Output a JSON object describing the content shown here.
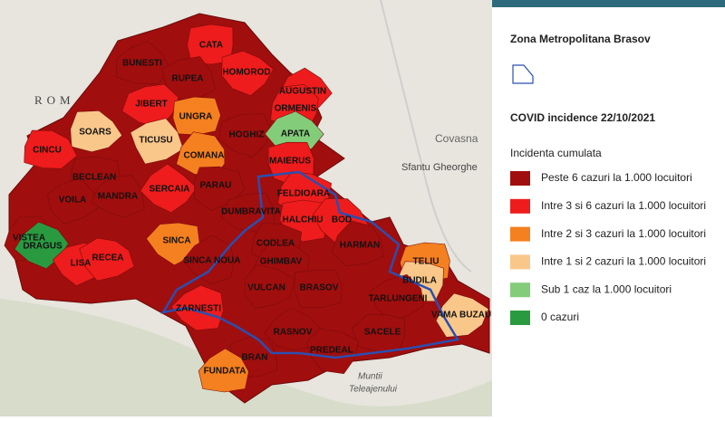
{
  "map": {
    "background_labels": [
      "ROM",
      "Covasna",
      "Sfantu Gheorghe",
      "Muntii",
      "Teleajenului"
    ],
    "regions": [
      {
        "label": "CATA",
        "color": "#ee1c1c"
      },
      {
        "label": "BUNESTI",
        "color": "#a10e0e"
      },
      {
        "label": "RUPEA",
        "color": "#a10e0e"
      },
      {
        "label": "HOMOROD",
        "color": "#ee1c1c"
      },
      {
        "label": "AUGUSTIN",
        "color": "#ee1c1c"
      },
      {
        "label": "ORMENIS",
        "color": "#ee1c1c"
      },
      {
        "label": "JIBERT",
        "color": "#ee1c1c"
      },
      {
        "label": "UNGRA",
        "color": "#f5801f"
      },
      {
        "label": "SOARS",
        "color": "#fac78a"
      },
      {
        "label": "TICUSU",
        "color": "#fac78a"
      },
      {
        "label": "HOGHIZ",
        "color": "#a10e0e"
      },
      {
        "label": "APATA",
        "color": "#82cc7a"
      },
      {
        "label": "CINCU",
        "color": "#ee1c1c"
      },
      {
        "label": "COMANA",
        "color": "#f5801f"
      },
      {
        "label": "MAIERUS",
        "color": "#ee1c1c"
      },
      {
        "label": "BECLEAN",
        "color": "#a10e0e"
      },
      {
        "label": "VOILA",
        "color": "#a10e0e"
      },
      {
        "label": "MANDRA",
        "color": "#a10e0e"
      },
      {
        "label": "SERCAIA",
        "color": "#ee1c1c"
      },
      {
        "label": "PARAU",
        "color": "#a10e0e"
      },
      {
        "label": "FELDIOARA",
        "color": "#ee1c1c"
      },
      {
        "label": "DUMBRAVITA",
        "color": "#a10e0e"
      },
      {
        "label": "HALCHIU",
        "color": "#ee1c1c"
      },
      {
        "label": "BOD",
        "color": "#ee1c1c"
      },
      {
        "label": "VISTEA",
        "color": "#a10e0e"
      },
      {
        "label": "DRAGUS",
        "color": "#2a9a41"
      },
      {
        "label": "SINCA",
        "color": "#f5801f"
      },
      {
        "label": "CODLEA",
        "color": "#a10e0e"
      },
      {
        "label": "HARMAN",
        "color": "#a10e0e"
      },
      {
        "label": "TELIU",
        "color": "#f5801f"
      },
      {
        "label": "LISA",
        "color": "#ee1c1c"
      },
      {
        "label": "RECEA",
        "color": "#ee1c1c"
      },
      {
        "label": "GHIMBAV",
        "color": "#a10e0e"
      },
      {
        "label": "SINCA NOUA",
        "color": "#a10e0e"
      },
      {
        "label": "BUDILA",
        "color": "#fac78a"
      },
      {
        "label": "VULCAN",
        "color": "#a10e0e"
      },
      {
        "label": "BRASOV",
        "color": "#a10e0e"
      },
      {
        "label": "ZARNESTI",
        "color": "#ee1c1c"
      },
      {
        "label": "TARLUNGENI",
        "color": "#a10e0e"
      },
      {
        "label": "VAMA BUZAU",
        "color": "#fac78a"
      },
      {
        "label": "RASNOV",
        "color": "#a10e0e"
      },
      {
        "label": "SACELE",
        "color": "#a10e0e"
      },
      {
        "label": "PREDEAL",
        "color": "#a10e0e"
      },
      {
        "label": "BRAN",
        "color": "#a10e0e"
      },
      {
        "label": "FUNDATA",
        "color": "#f5801f"
      }
    ]
  },
  "legend": {
    "layer_title": "Zona Metropolitana Brasov",
    "title": "COVID incidence 22/10/2021",
    "subtitle": "Incidenta cumulata",
    "items": [
      {
        "label": "Peste 6 cazuri la 1.000 locuitori",
        "color": "#a10e0e"
      },
      {
        "label": "Intre 3 si 6 cazuri la 1.000 locuitori",
        "color": "#ee1c1c"
      },
      {
        "label": "Intre 2 si 3 cazuri la 1.000 locuitori",
        "color": "#f5801f"
      },
      {
        "label": "Intre 1 si 2 cazuri la 1.000 locuitori",
        "color": "#fac78a"
      },
      {
        "label": "Sub 1 caz la 1.000 locuitori",
        "color": "#82cc7a"
      },
      {
        "label": "0 cazuri",
        "color": "#2a9a41"
      }
    ]
  }
}
